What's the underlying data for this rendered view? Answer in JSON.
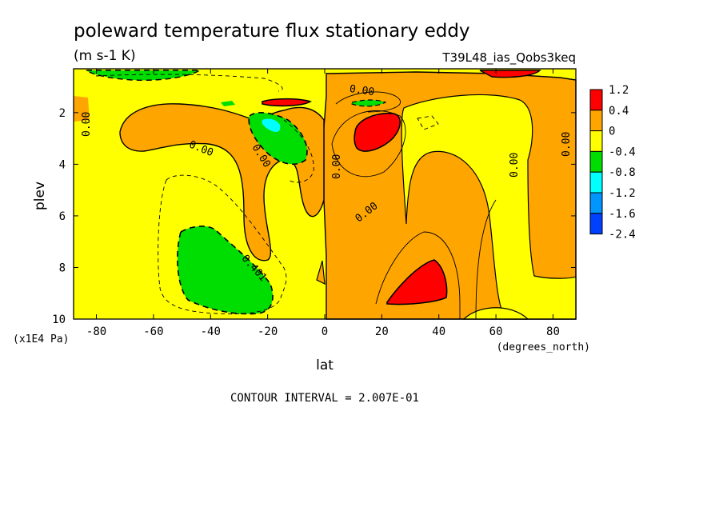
{
  "chart_data": {
    "type": "heatmap",
    "title": "poleward temperature flux stationary eddy",
    "subtitle": "(m s-1 K)",
    "run_label": "T39L48_ias_Qobs3keq",
    "xlabel": "lat",
    "x_units": "(degrees_north)",
    "ylabel": "plev",
    "y_units": "(x1E4 Pa)",
    "xlim": [
      -88,
      88
    ],
    "ylim": [
      10,
      0.3
    ],
    "y_inverted": true,
    "x_ticks": [
      "-80",
      "-60",
      "-40",
      "-20",
      "0",
      "20",
      "40",
      "60",
      "80"
    ],
    "x_tick_values": [
      -80,
      -60,
      -40,
      -20,
      0,
      20,
      40,
      60,
      80
    ],
    "y_ticks": [
      "2",
      "4",
      "6",
      "8",
      "10"
    ],
    "y_tick_values": [
      2,
      4,
      6,
      8,
      10
    ],
    "contour_interval_text": "CONTOUR INTERVAL = 2.007E-01",
    "contour_labels": [
      "0.00",
      "0.00",
      "0.00",
      "0.00",
      "0.00",
      "0.00",
      "0.00",
      "0.00",
      "0.401"
    ],
    "colorbar": {
      "labels": [
        "1.2",
        "0.4",
        "0",
        "-0.4",
        "-0.8",
        "-1.2",
        "-1.6",
        "-2.4"
      ],
      "colors": [
        "#ff0000",
        "#ffa500",
        "#ffff00",
        "#00dd00",
        "#00ffff",
        "#0095ff",
        "#0040ff"
      ]
    },
    "grid": false,
    "fill_colors": {
      "background": "#ffff00",
      "positive": "#ffa500",
      "strong_positive": "#ff0000",
      "negative": "#00dd00",
      "strong_negative": "#00ffff"
    }
  }
}
